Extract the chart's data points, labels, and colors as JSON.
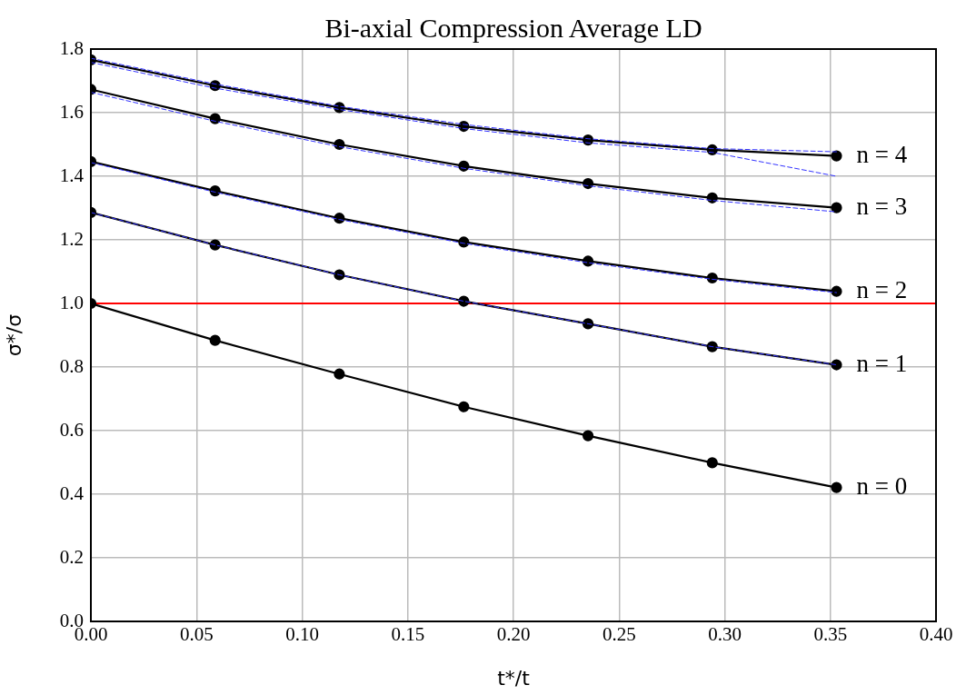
{
  "chart_data": {
    "type": "line",
    "title": "Bi-axial Compression Average LD",
    "xlabel": "t*/t",
    "ylabel": "σ*/σ",
    "x": [
      0,
      0.0588,
      0.1176,
      0.1765,
      0.2353,
      0.2941,
      0.3529
    ],
    "xlim": [
      0,
      0.4
    ],
    "xticks": [
      {
        "value": 0,
        "label": "0.00"
      },
      {
        "value": 0.05,
        "label": "0.05"
      },
      {
        "value": 0.1,
        "label": "0.10"
      },
      {
        "value": 0.15,
        "label": "0.15"
      },
      {
        "value": 0.2,
        "label": "0.20"
      },
      {
        "value": 0.25,
        "label": "0.25"
      },
      {
        "value": 0.3,
        "label": "0.30"
      },
      {
        "value": 0.35,
        "label": "0.35"
      },
      {
        "value": 0.4,
        "label": "0.40"
      }
    ],
    "ylim": [
      0,
      1.8
    ],
    "yticks": [
      {
        "value": 0,
        "label": "0.0"
      },
      {
        "value": 0.2,
        "label": "0.2"
      },
      {
        "value": 0.4,
        "label": "0.4"
      },
      {
        "value": 0.6,
        "label": "0.6"
      },
      {
        "value": 0.8,
        "label": "0.8"
      },
      {
        "value": 1,
        "label": "1.0"
      },
      {
        "value": 1.2,
        "label": "1.2"
      },
      {
        "value": 1.4,
        "label": "1.4"
      },
      {
        "value": 1.6,
        "label": "1.6"
      },
      {
        "value": 1.8,
        "label": "1.8"
      }
    ],
    "grid": true,
    "legend": false,
    "marker": "circle",
    "line_style": "solid",
    "ref_lines": [
      {
        "axis": "y",
        "value": 1,
        "color": "#ff0000"
      }
    ],
    "series": [
      {
        "color": "#3333ff",
        "line_style": "dashed",
        "marker": "none",
        "values": [
          1.771,
          1.69,
          1.62,
          1.563,
          1.518,
          1.487,
          1.477
        ]
      },
      {
        "color": "#3333ff",
        "line_style": "dashed",
        "marker": "none",
        "values": [
          1.758,
          1.677,
          1.61,
          1.55,
          1.505,
          1.475,
          1.4
        ]
      },
      {
        "color": "#3333ff",
        "line_style": "dashed",
        "marker": "none",
        "values": [
          1.664,
          1.573,
          1.493,
          1.425,
          1.37,
          1.324,
          1.288
        ]
      },
      {
        "color": "#3333ff",
        "line_style": "dashed",
        "marker": "none",
        "values": [
          1.443,
          1.35,
          1.264,
          1.189,
          1.128,
          1.076,
          1.034
        ]
      },
      {
        "color": "#3333ff",
        "line_style": "dashed",
        "marker": "none",
        "values": [
          1.286,
          1.184,
          1.09,
          1.007,
          0.936,
          0.864,
          0.807
        ]
      },
      {
        "name": "n = 4",
        "color": "#000000",
        "values": [
          1.766,
          1.685,
          1.616,
          1.557,
          1.514,
          1.483,
          1.464
        ]
      },
      {
        "name": "n = 3",
        "color": "#000000",
        "values": [
          1.673,
          1.581,
          1.5,
          1.432,
          1.377,
          1.332,
          1.301
        ]
      },
      {
        "name": "n = 2",
        "color": "#000000",
        "values": [
          1.446,
          1.354,
          1.268,
          1.193,
          1.133,
          1.08,
          1.038
        ]
      },
      {
        "name": "n = 1",
        "color": "#000000",
        "values": [
          1.286,
          1.184,
          1.09,
          1.007,
          0.936,
          0.864,
          0.807
        ]
      },
      {
        "name": "n = 0",
        "color": "#000000",
        "values": [
          1.0,
          0.884,
          0.778,
          0.675,
          0.584,
          0.499,
          0.421
        ]
      }
    ]
  }
}
